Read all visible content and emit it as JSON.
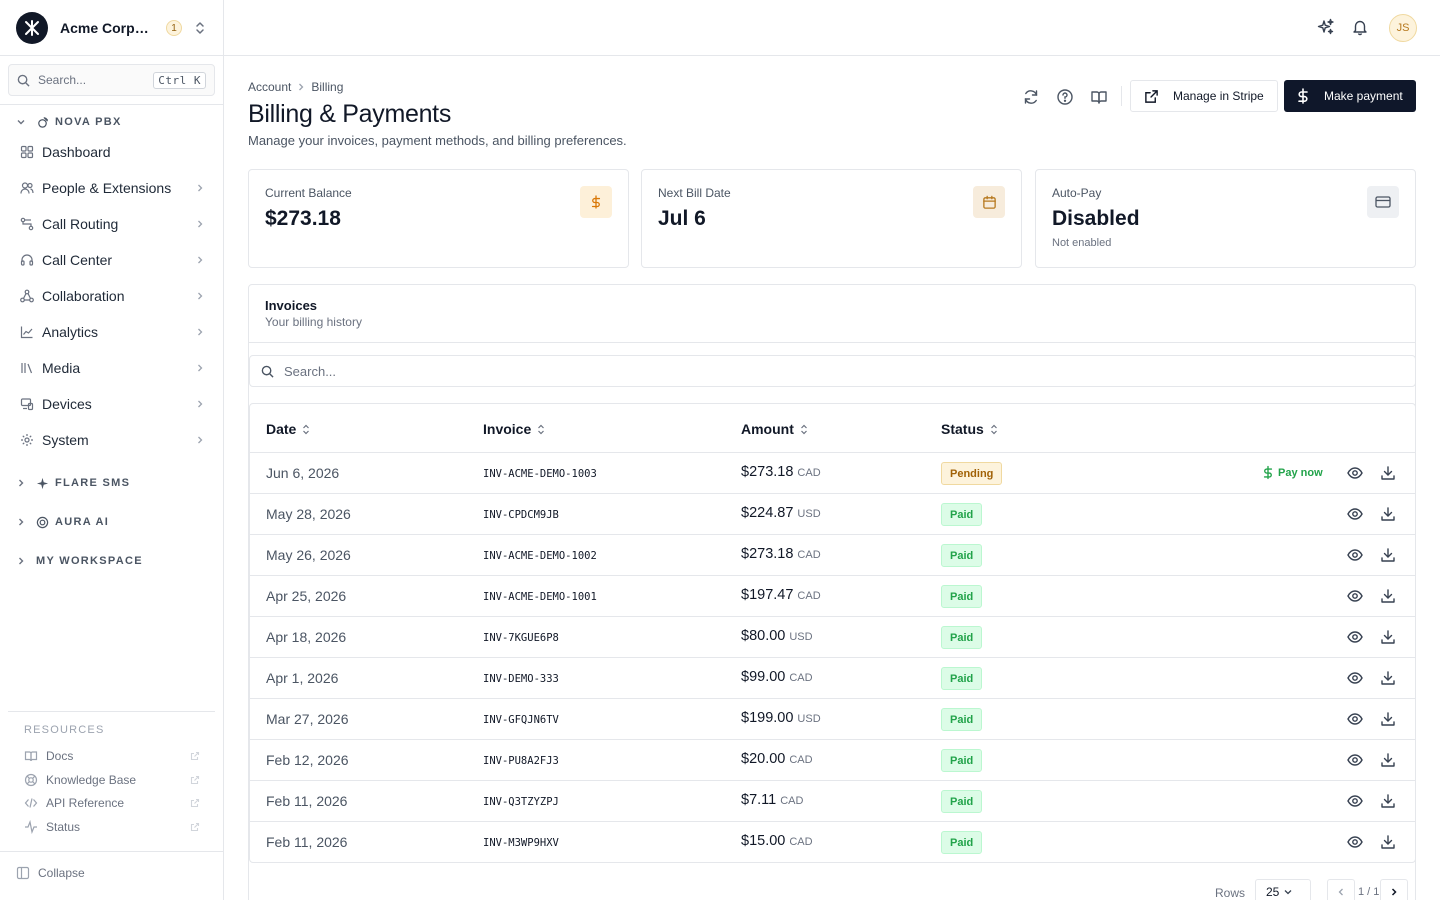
{
  "org": {
    "name": "Acme Corporation",
    "count": "1"
  },
  "search": {
    "placeholder": "Search...",
    "shortcut": "Ctrl K"
  },
  "sections": [
    {
      "title": "NOVA PBX",
      "items": [
        {
          "label": "Dashboard",
          "icon": "grid-icon"
        },
        {
          "label": "People & Extensions",
          "icon": "users-icon"
        },
        {
          "label": "Call Routing",
          "icon": "routing-icon"
        },
        {
          "label": "Call Center",
          "icon": "headset-icon"
        },
        {
          "label": "Collaboration",
          "icon": "network-icon"
        },
        {
          "label": "Analytics",
          "icon": "chart-icon"
        },
        {
          "label": "Media",
          "icon": "library-icon"
        },
        {
          "label": "Devices",
          "icon": "devices-icon"
        },
        {
          "label": "System",
          "icon": "gear-icon"
        }
      ]
    },
    {
      "title": "FLARE SMS"
    },
    {
      "title": "AURA AI"
    },
    {
      "title": "MY WORKSPACE"
    }
  ],
  "resources": {
    "title": "RESOURCES",
    "items": [
      {
        "label": "Docs"
      },
      {
        "label": "Knowledge Base"
      },
      {
        "label": "API Reference"
      },
      {
        "label": "Status"
      }
    ]
  },
  "collapse_label": "Collapse",
  "user_initials": "JS",
  "breadcrumb": [
    "Account",
    "Billing"
  ],
  "page": {
    "title": "Billing & Payments",
    "subtitle": "Manage your invoices, payment methods, and billing preferences."
  },
  "actions": {
    "manage": "Manage in Stripe",
    "pay": "Make payment"
  },
  "cards": [
    {
      "label": "Current Balance",
      "value": "$273.18",
      "sub": "",
      "icon": "dollar-icon"
    },
    {
      "label": "Next Bill Date",
      "value": "Jul 6",
      "sub": "",
      "icon": "calendar-icon"
    },
    {
      "label": "Auto-Pay",
      "value": "Disabled",
      "sub": "Not enabled",
      "icon": "credit-card-icon"
    }
  ],
  "invoices": {
    "title": "Invoices",
    "subtitle": "Your billing history",
    "search_placeholder": "Search...",
    "columns": [
      "Date",
      "Invoice",
      "Amount",
      "Status"
    ],
    "pay_now_label": "Pay now",
    "rows": [
      {
        "date": "Jun 6, 2026",
        "invoice": "INV-ACME-DEMO-1003",
        "amount": "$273.18",
        "currency": "CAD",
        "status": "Pending"
      },
      {
        "date": "May 28, 2026",
        "invoice": "INV-CPDCM9JB",
        "amount": "$224.87",
        "currency": "USD",
        "status": "Paid"
      },
      {
        "date": "May 26, 2026",
        "invoice": "INV-ACME-DEMO-1002",
        "amount": "$273.18",
        "currency": "CAD",
        "status": "Paid"
      },
      {
        "date": "Apr 25, 2026",
        "invoice": "INV-ACME-DEMO-1001",
        "amount": "$197.47",
        "currency": "CAD",
        "status": "Paid"
      },
      {
        "date": "Apr 18, 2026",
        "invoice": "INV-7KGUE6P8",
        "amount": "$80.00",
        "currency": "USD",
        "status": "Paid"
      },
      {
        "date": "Apr 1, 2026",
        "invoice": "INV-DEMO-333",
        "amount": "$99.00",
        "currency": "CAD",
        "status": "Paid"
      },
      {
        "date": "Mar 27, 2026",
        "invoice": "INV-GFQJN6TV",
        "amount": "$199.00",
        "currency": "USD",
        "status": "Paid"
      },
      {
        "date": "Feb 12, 2026",
        "invoice": "INV-PU8A2FJ3",
        "amount": "$20.00",
        "currency": "CAD",
        "status": "Paid"
      },
      {
        "date": "Feb 11, 2026",
        "invoice": "INV-Q3TZYZPJ",
        "amount": "$7.11",
        "currency": "CAD",
        "status": "Paid"
      },
      {
        "date": "Feb 11, 2026",
        "invoice": "INV-M3WP9HXV",
        "amount": "$15.00",
        "currency": "CAD",
        "status": "Paid"
      }
    ]
  },
  "pagination": {
    "rows_label": "Rows",
    "rows_value": "25",
    "page_info": "1 / 1"
  },
  "colors": {
    "primary": "#0f172a",
    "paid": "#22a34a",
    "pending": "#a16207",
    "accent_amber": "#b7791f"
  }
}
